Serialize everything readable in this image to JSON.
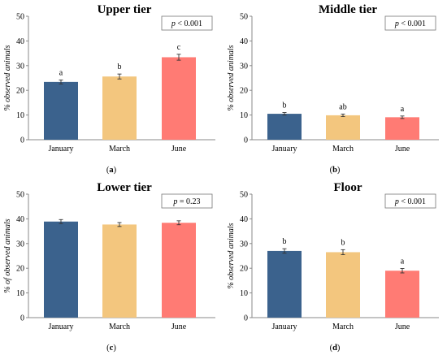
{
  "chart_data": [
    {
      "type": "bar",
      "title": "Upper tier",
      "ylabel": "% observed animals",
      "ylim": [
        0,
        50
      ],
      "yticks": [
        0,
        10,
        20,
        30,
        40,
        50
      ],
      "categories": [
        "January",
        "March",
        "June"
      ],
      "values": [
        23.4,
        25.6,
        33.4
      ],
      "errors": [
        0.8,
        1.0,
        1.2
      ],
      "letters": [
        "a",
        "b",
        "c"
      ],
      "p_text": "p < 0.001",
      "panel_label": "(a)",
      "colors": [
        "#3B628D",
        "#F3C67E",
        "#FF7B74"
      ]
    },
    {
      "type": "bar",
      "title": "Middle tier",
      "ylabel": "% observed animals",
      "ylim": [
        0,
        50
      ],
      "yticks": [
        0,
        10,
        20,
        30,
        40,
        50
      ],
      "categories": [
        "January",
        "March",
        "June"
      ],
      "values": [
        10.5,
        9.9,
        9.1
      ],
      "errors": [
        0.5,
        0.5,
        0.5
      ],
      "letters": [
        "b",
        "ab",
        "a"
      ],
      "p_text": "p < 0.001",
      "panel_label": "(b)",
      "colors": [
        "#3B628D",
        "#F3C67E",
        "#FF7B74"
      ]
    },
    {
      "type": "bar",
      "title": "Lower tier",
      "ylabel": "% of observed animals",
      "ylim": [
        0,
        50
      ],
      "yticks": [
        0,
        10,
        20,
        30,
        40,
        50
      ],
      "categories": [
        "January",
        "March",
        "June"
      ],
      "values": [
        38.9,
        37.7,
        38.4
      ],
      "errors": [
        0.8,
        0.8,
        0.8
      ],
      "letters": [
        "",
        "",
        ""
      ],
      "p_text": "p = 0.23",
      "panel_label": "(c)",
      "colors": [
        "#3B628D",
        "#F3C67E",
        "#FF7B74"
      ]
    },
    {
      "type": "bar",
      "title": "Floor",
      "ylabel": "% observed animals",
      "ylim": [
        0,
        50
      ],
      "yticks": [
        0,
        10,
        20,
        30,
        40,
        50
      ],
      "categories": [
        "January",
        "March",
        "June"
      ],
      "values": [
        27.0,
        26.5,
        19.0
      ],
      "errors": [
        0.9,
        1.0,
        0.9
      ],
      "letters": [
        "b",
        "b",
        "a"
      ],
      "p_text": "p < 0.001",
      "panel_label": "(d)",
      "colors": [
        "#3B628D",
        "#F3C67E",
        "#FF7B74"
      ]
    }
  ]
}
